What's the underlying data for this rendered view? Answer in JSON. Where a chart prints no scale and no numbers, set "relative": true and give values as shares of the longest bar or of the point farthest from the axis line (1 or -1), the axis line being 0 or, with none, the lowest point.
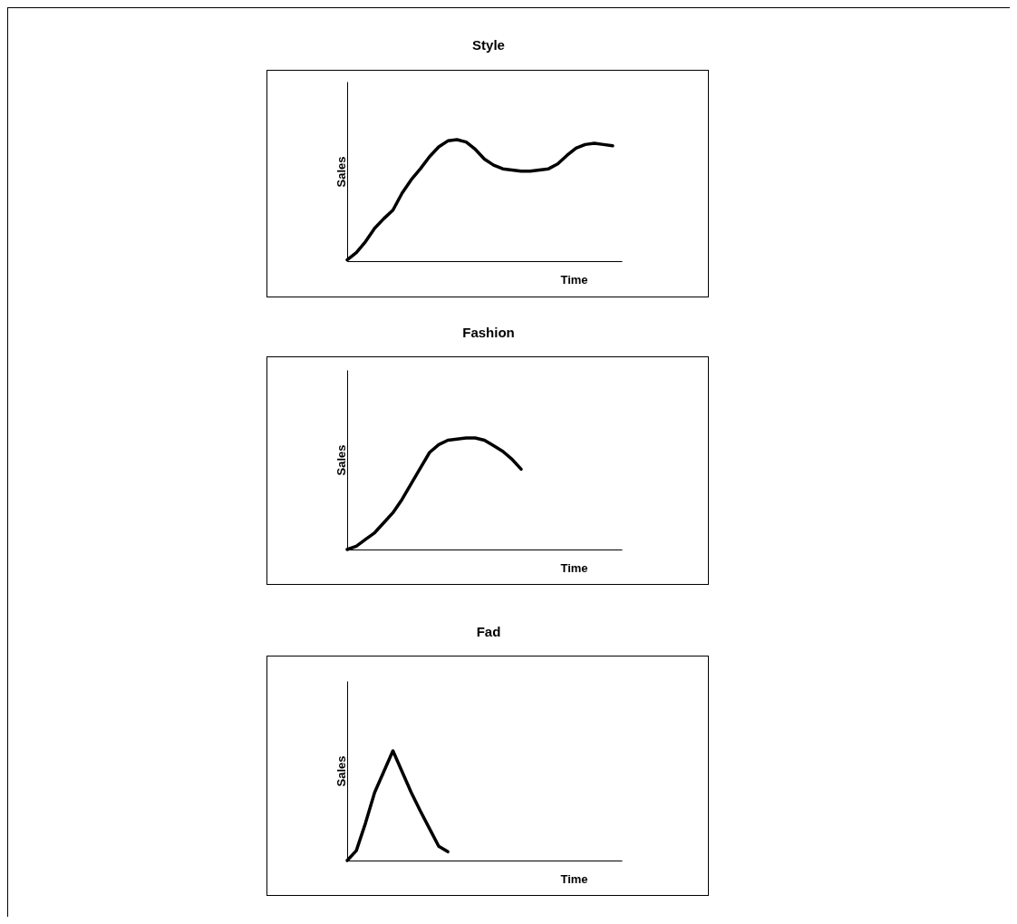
{
  "chart_data": [
    {
      "type": "line",
      "title": "Style",
      "xlabel": "Time",
      "ylabel": "Sales",
      "relative": true,
      "color": "#000000",
      "grid": false,
      "categories": [
        null,
        null,
        null,
        null,
        null,
        null,
        null,
        null,
        null,
        null,
        null,
        null,
        null,
        null,
        null,
        null,
        null,
        null,
        null,
        null,
        null,
        null,
        null,
        null,
        null,
        null,
        null,
        null,
        null,
        null,
        null
      ],
      "values": [
        0.01,
        0.07,
        0.16,
        0.27,
        0.35,
        0.42,
        0.56,
        0.67,
        0.76,
        0.86,
        0.94,
        0.99,
        1,
        0.98,
        0.92,
        0.84,
        0.79,
        0.76,
        0.75,
        0.74,
        0.74,
        0.75,
        0.76,
        0.8,
        0.87,
        0.93,
        0.96,
        0.97,
        0.96,
        0.95,
        null
      ]
    },
    {
      "type": "line",
      "title": "Fashion",
      "xlabel": "Time",
      "ylabel": "Sales",
      "relative": true,
      "color": "#000000",
      "grid": false,
      "categories": [
        null,
        null,
        null,
        null,
        null,
        null,
        null,
        null,
        null,
        null,
        null,
        null,
        null,
        null,
        null,
        null,
        null,
        null,
        null,
        null,
        null,
        null,
        null,
        null,
        null,
        null,
        null,
        null,
        null,
        null,
        null
      ],
      "values": [
        0,
        0.03,
        0.09,
        0.15,
        0.24,
        0.33,
        0.45,
        0.59,
        0.73,
        0.87,
        0.94,
        0.98,
        0.99,
        1,
        1,
        0.98,
        0.93,
        0.88,
        0.81,
        0.72,
        null,
        null,
        null,
        null,
        null,
        null,
        null,
        null,
        null,
        null,
        null
      ]
    },
    {
      "type": "line",
      "title": "Fad",
      "xlabel": "Time",
      "ylabel": "Sales",
      "relative": true,
      "color": "#000000",
      "grid": false,
      "categories": [
        null,
        null,
        null,
        null,
        null,
        null,
        null,
        null,
        null,
        null,
        null,
        null,
        null,
        null,
        null,
        null,
        null,
        null,
        null,
        null,
        null,
        null,
        null,
        null,
        null,
        null,
        null,
        null,
        null,
        null,
        null
      ],
      "values": [
        0,
        0.09,
        0.34,
        0.62,
        0.81,
        1,
        0.81,
        0.62,
        0.45,
        0.29,
        0.13,
        0.08,
        null,
        null,
        null,
        null,
        null,
        null,
        null,
        null,
        null,
        null,
        null,
        null,
        null,
        null,
        null,
        null,
        null,
        null,
        null
      ]
    }
  ]
}
